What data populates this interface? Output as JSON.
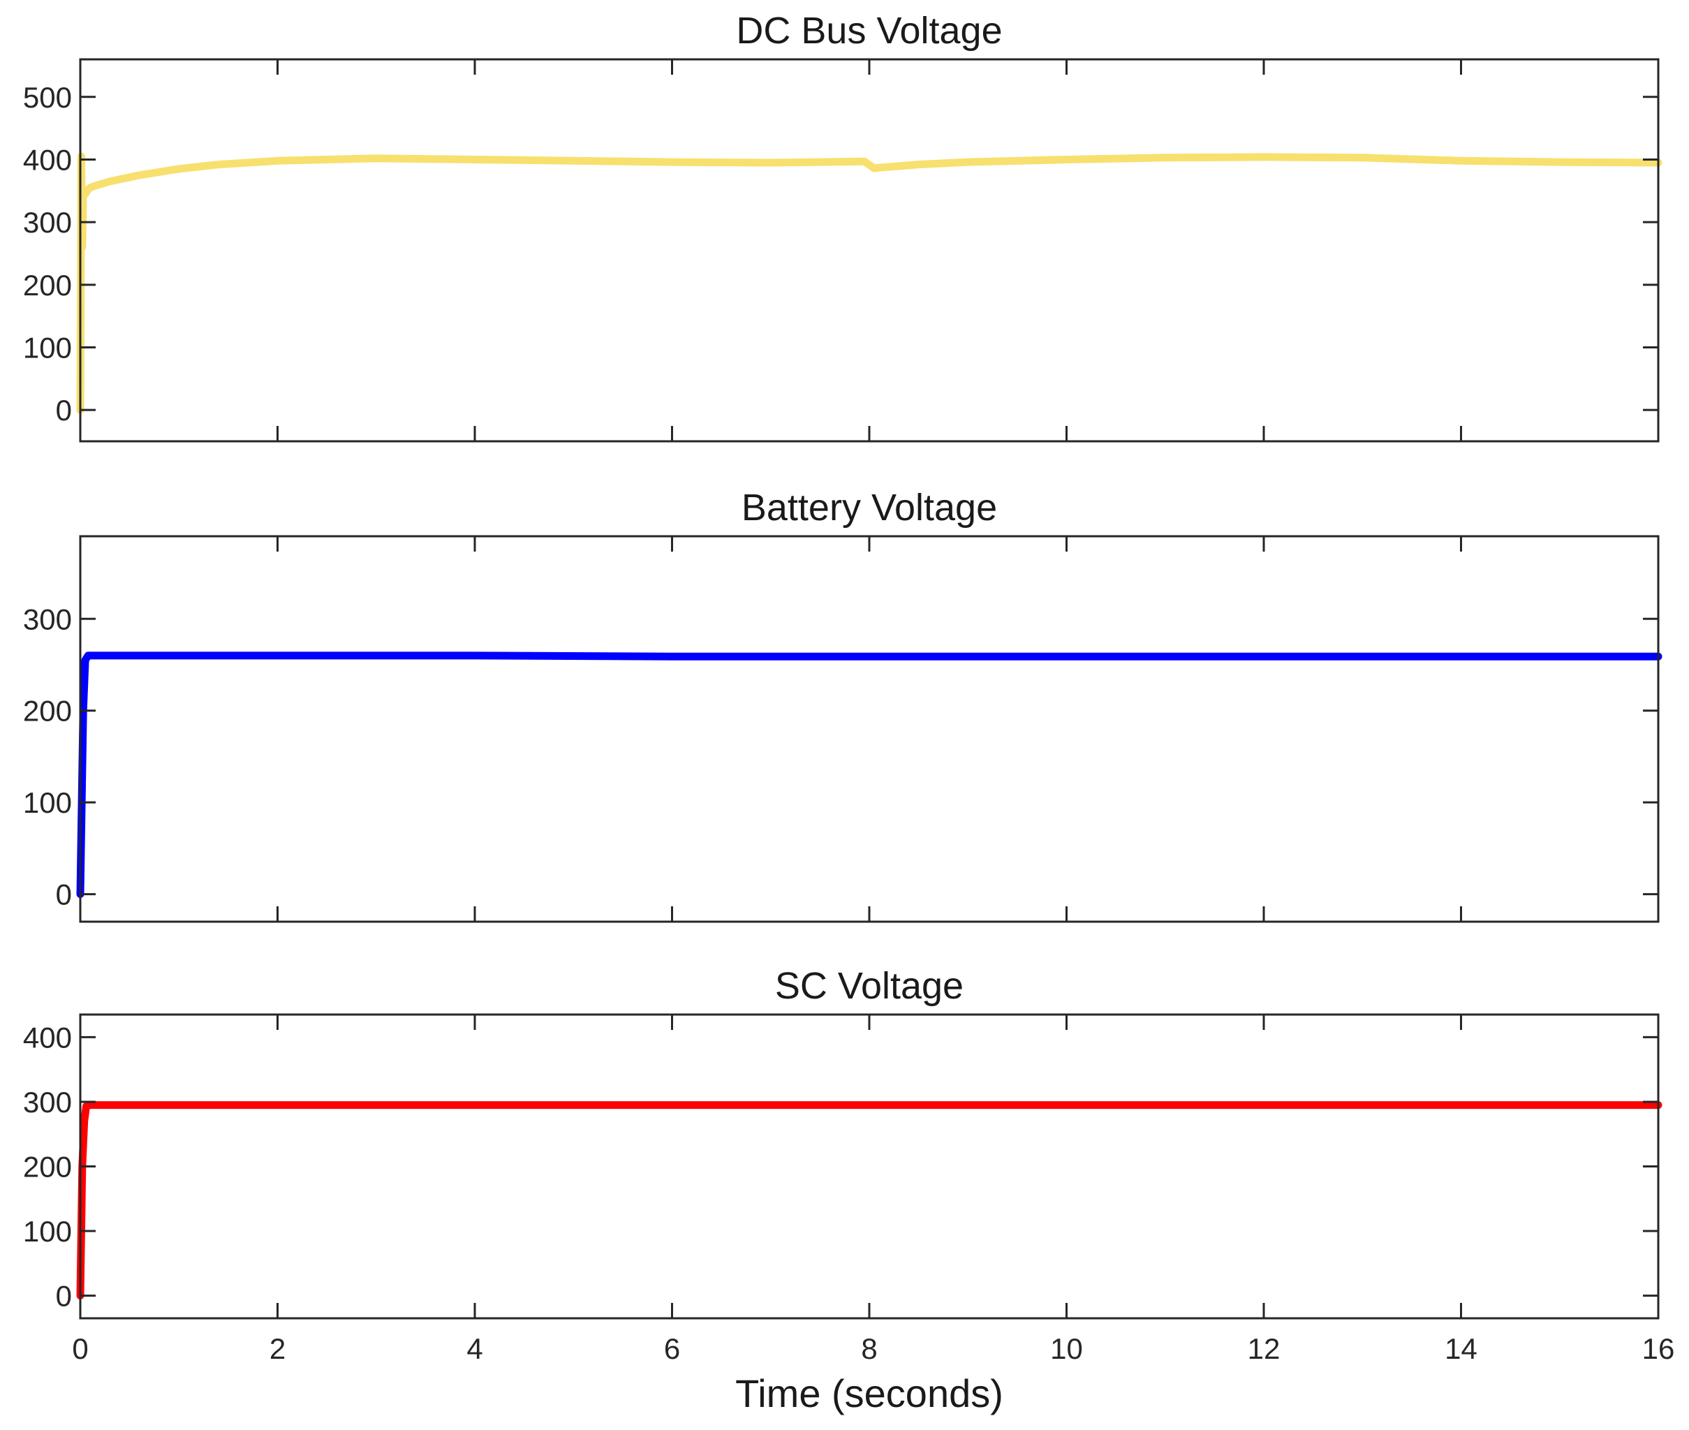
{
  "chart_data": [
    {
      "type": "line",
      "title": "DC Bus Voltage",
      "xlim": [
        0,
        16
      ],
      "ylim": [
        -50,
        560
      ],
      "yticks": [
        0,
        100,
        200,
        300,
        400,
        500
      ],
      "xticks": [
        0,
        2,
        4,
        6,
        8,
        10,
        12,
        14,
        16
      ],
      "xticklabels_visible": false,
      "grid": false,
      "series": [
        {
          "color": "#f7e06e",
          "x": [
            0,
            0.01,
            0.02,
            0.03,
            0.05,
            0.08,
            0.1,
            0.15,
            0.3,
            0.6,
            1.0,
            1.4,
            2.0,
            3.0,
            4.0,
            5.0,
            6.0,
            7.0,
            7.95,
            8.05,
            8.1,
            8.5,
            9.0,
            10.0,
            11.0,
            12.0,
            13.0,
            14.0,
            15.0,
            16.0
          ],
          "y": [
            0,
            405,
            260,
            350,
            345,
            352,
            355,
            358,
            365,
            375,
            385,
            392,
            398,
            402,
            400,
            398,
            396,
            395,
            397,
            386,
            387,
            392,
            396,
            400,
            403,
            404,
            403,
            398,
            396,
            395
          ]
        }
      ]
    },
    {
      "type": "line",
      "title": "Battery Voltage",
      "xlim": [
        0,
        16
      ],
      "ylim": [
        -30,
        390
      ],
      "yticks": [
        0,
        100,
        200,
        300
      ],
      "xticks": [
        0,
        2,
        4,
        6,
        8,
        10,
        12,
        14,
        16
      ],
      "xticklabels_visible": false,
      "grid": false,
      "series": [
        {
          "color": "#0000ff",
          "x": [
            0,
            0.03,
            0.05,
            0.08,
            0.2,
            2,
            4,
            6,
            8,
            10,
            12,
            14,
            16
          ],
          "y": [
            0,
            200,
            255,
            260,
            260,
            260,
            260,
            259,
            259,
            259,
            259,
            259,
            259
          ]
        }
      ]
    },
    {
      "type": "line",
      "title": "SC Voltage",
      "xlim": [
        0,
        16
      ],
      "ylim": [
        -35,
        435
      ],
      "yticks": [
        0,
        100,
        200,
        300,
        400
      ],
      "xticks": [
        0,
        2,
        4,
        6,
        8,
        10,
        12,
        14,
        16
      ],
      "xticklabels": [
        "0",
        "2",
        "4",
        "6",
        "8",
        "10",
        "12",
        "14",
        "16"
      ],
      "xlabel": "Time (seconds)",
      "grid": false,
      "series": [
        {
          "color": "#ff0000",
          "x": [
            0,
            0.02,
            0.04,
            0.06,
            0.1,
            0.3,
            2,
            4,
            6,
            8,
            10,
            12,
            14,
            16
          ],
          "y": [
            0,
            200,
            270,
            293,
            295,
            295,
            295,
            295,
            295,
            295,
            295,
            295,
            295,
            295
          ]
        }
      ]
    }
  ]
}
